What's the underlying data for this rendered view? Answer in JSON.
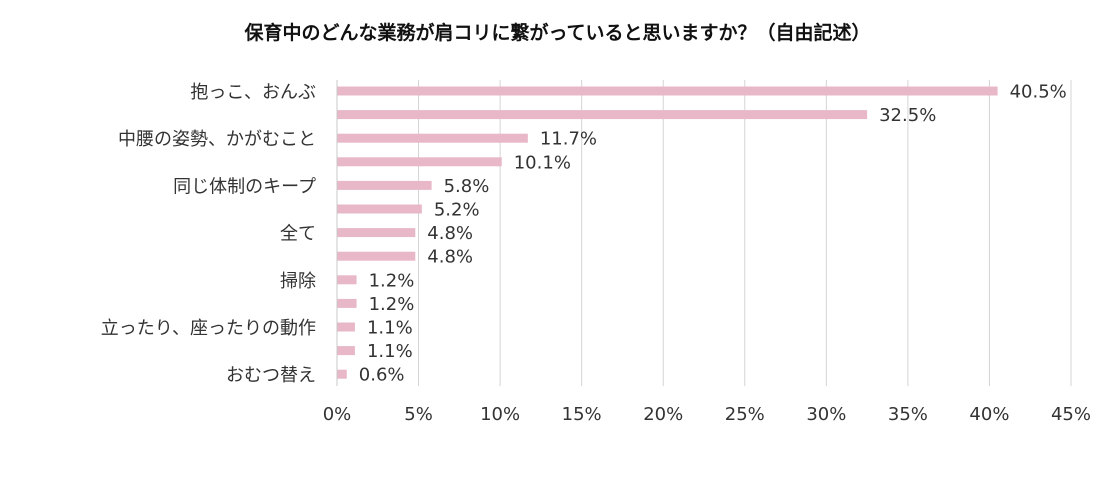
{
  "chart_data": {
    "type": "bar",
    "orientation": "horizontal",
    "title": "保育中のどんな業務が肩コリに繋がっていると思いますか？（自由記述）",
    "xlabel": "",
    "ylabel": "",
    "xlim": [
      0,
      45
    ],
    "x_ticks": [
      "0%",
      "5%",
      "10%",
      "15%",
      "20%",
      "25%",
      "30%",
      "35%",
      "40%",
      "45%"
    ],
    "x_tick_values": [
      0,
      5,
      10,
      15,
      20,
      25,
      30,
      35,
      40,
      45
    ],
    "grid": true,
    "legend": "none",
    "bar_color": "#E8B8C8",
    "categories": [
      "抱っこ、おんぶ",
      "",
      "中腰の姿勢、かがむこと",
      "",
      "同じ体制のキープ",
      "",
      "全て",
      "",
      "掃除",
      "",
      "立ったり、座ったりの動作",
      "",
      "おむつ替え"
    ],
    "values": [
      40.5,
      32.5,
      11.7,
      10.1,
      5.8,
      5.2,
      4.8,
      4.8,
      1.2,
      1.2,
      1.1,
      1.1,
      0.6
    ],
    "data_labels": [
      "40.5%",
      "32.5%",
      "11.7%",
      "10.1%",
      "5.8%",
      "5.2%",
      "4.8%",
      "4.8%",
      "1.2%",
      "1.2%",
      "1.1%",
      "1.1%",
      "0.6%"
    ]
  }
}
